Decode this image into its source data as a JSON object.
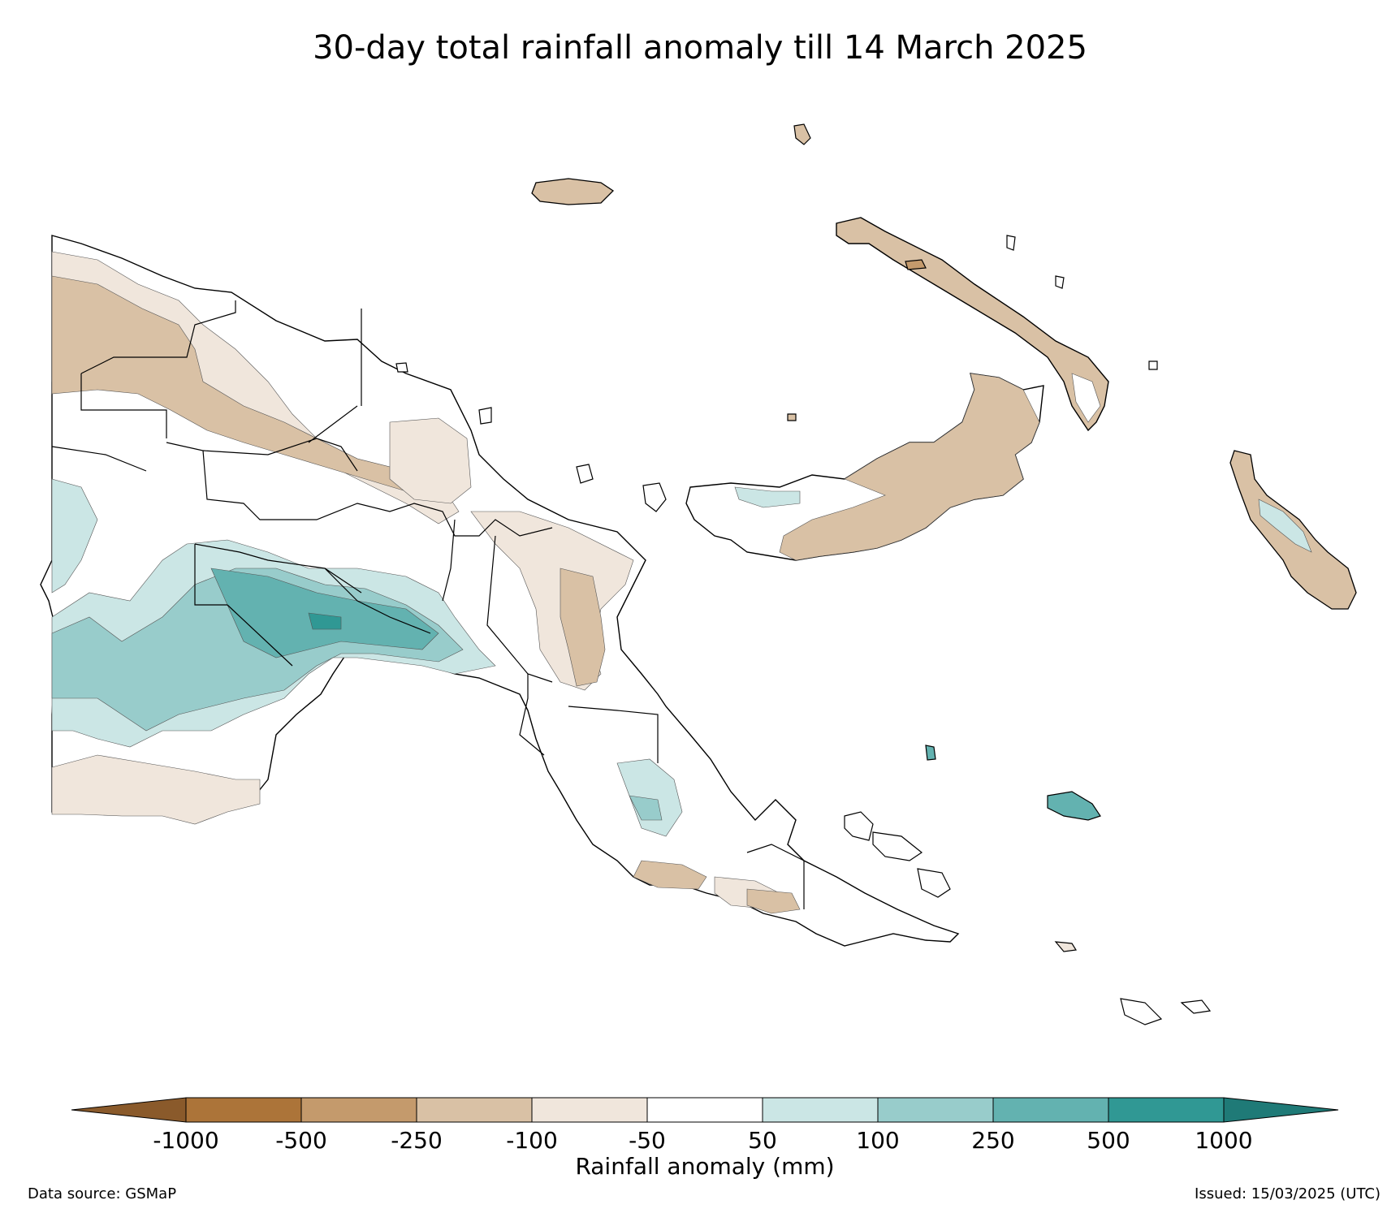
{
  "title": "30-day total rainfall anomaly till 14 March 2025",
  "colorbar": {
    "label": "Rainfall anomaly (mm)",
    "ticks": [
      "-1000",
      "-500",
      "-250",
      "-100",
      "-50",
      "50",
      "100",
      "250",
      "500",
      "1000"
    ],
    "colors": {
      "lt_-1000": "#8a5a2b",
      "-1000_-500": "#ac7439",
      "-500_-250": "#c49a6c",
      "-250_-100": "#d9c1a5",
      "-100_-50": "#f0e6dc",
      "-50_50": "#ffffff",
      "50_100": "#cbe6e5",
      "100_250": "#98cccb",
      "250_500": "#63b2b0",
      "500_1000": "#309894",
      "gt_1000": "#1f7a77"
    }
  },
  "footer": {
    "source": "Data source: GSMaP",
    "issued": "Issued: 15/03/2025 (UTC)"
  }
}
